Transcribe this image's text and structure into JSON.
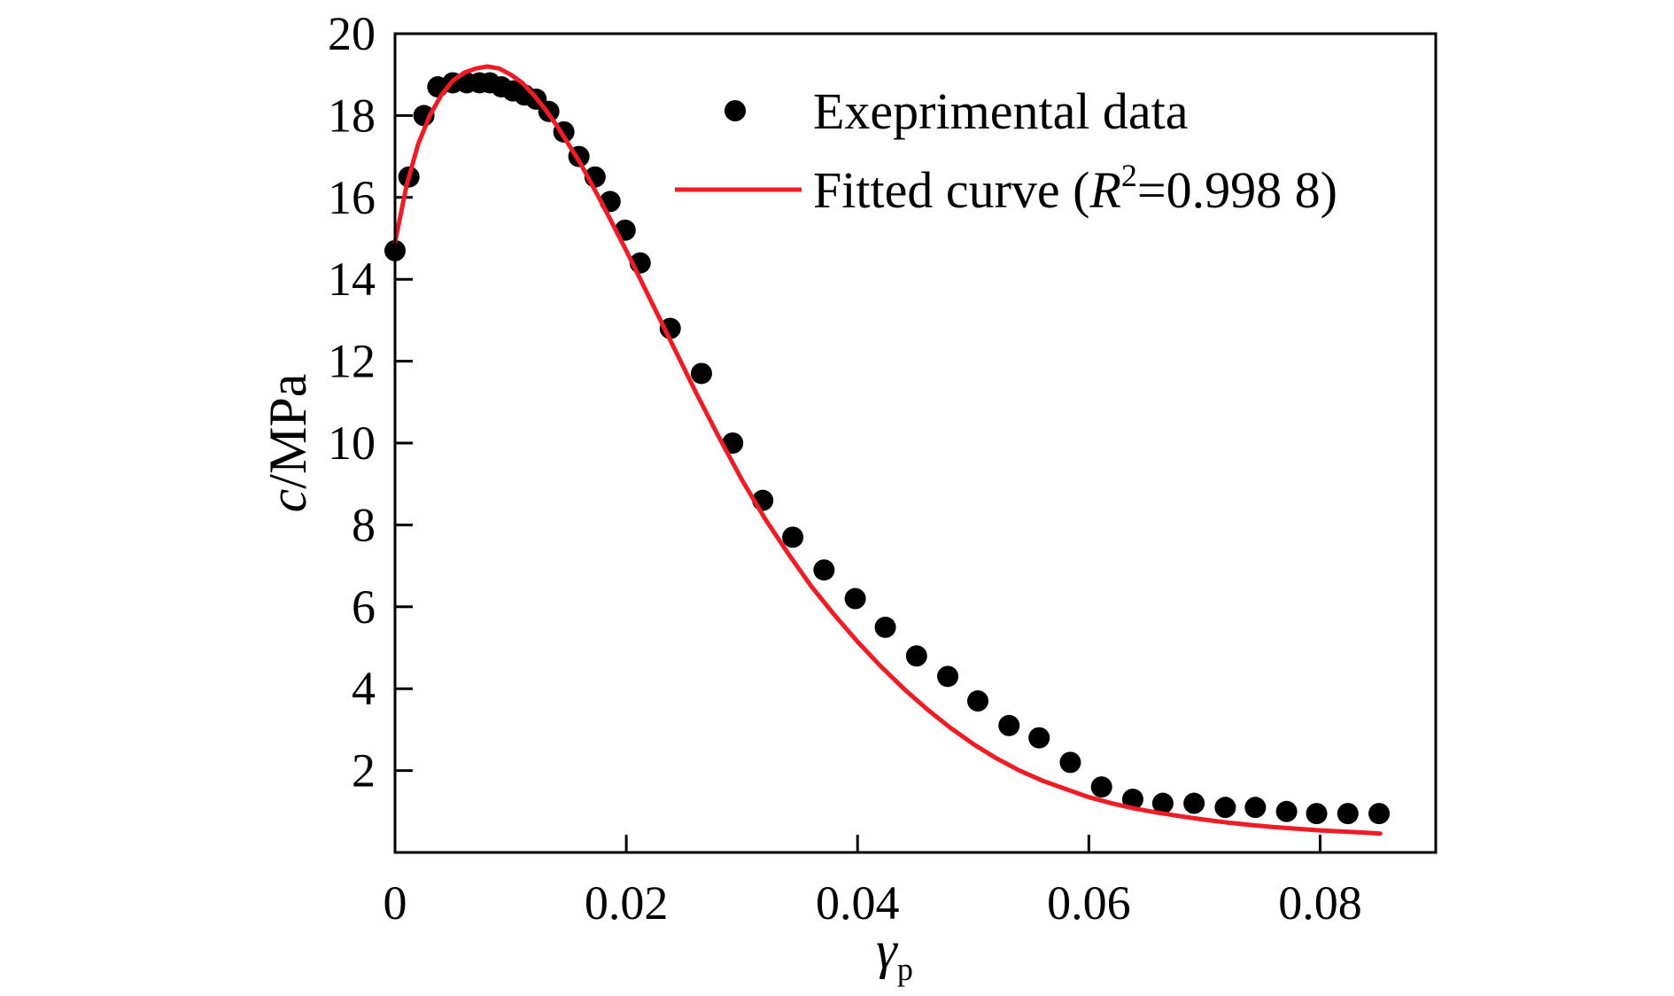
{
  "chart_data": {
    "type": "scatter",
    "title": "",
    "xlabel": {
      "main": "γ",
      "sub": "p"
    },
    "ylabel": {
      "italic": "c",
      "rest": "/MPa"
    },
    "xlim": [
      0,
      0.09
    ],
    "ylim": [
      0,
      20
    ],
    "x_ticks": [
      0,
      0.02,
      0.04,
      0.06,
      0.08
    ],
    "x_tick_labels": [
      "0",
      "0.02",
      "0.04",
      "0.06",
      "0.08"
    ],
    "y_ticks": [
      2,
      4,
      6,
      8,
      10,
      12,
      14,
      16,
      18,
      20
    ],
    "y_tick_labels": [
      "2",
      "4",
      "6",
      "8",
      "10",
      "12",
      "14",
      "16",
      "18",
      "20"
    ],
    "grid": false,
    "legend_position": "top-right",
    "series": [
      {
        "name": "Exeprimental data",
        "kind": "scatter",
        "color": "#000000",
        "x": [
          0.0,
          0.0012,
          0.0025,
          0.0037,
          0.005,
          0.0062,
          0.0073,
          0.0082,
          0.0092,
          0.0102,
          0.0112,
          0.0122,
          0.0133,
          0.0146,
          0.0159,
          0.0173,
          0.0186,
          0.0199,
          0.0212,
          0.0238,
          0.0265,
          0.0292,
          0.0318,
          0.0344,
          0.0371,
          0.0398,
          0.0424,
          0.0451,
          0.0478,
          0.0504,
          0.0531,
          0.0557,
          0.0584,
          0.0611,
          0.0638,
          0.0664,
          0.0691,
          0.0718,
          0.0744,
          0.0771,
          0.0797,
          0.0824,
          0.0851
        ],
        "y": [
          14.7,
          16.5,
          18.0,
          18.7,
          18.8,
          18.8,
          18.8,
          18.8,
          18.7,
          18.6,
          18.5,
          18.4,
          18.1,
          17.6,
          17.0,
          16.5,
          15.9,
          15.2,
          14.4,
          12.8,
          11.7,
          10.0,
          8.6,
          7.7,
          6.9,
          6.2,
          5.5,
          4.8,
          4.3,
          3.7,
          3.1,
          2.8,
          2.2,
          1.6,
          1.3,
          1.2,
          1.2,
          1.1,
          1.1,
          1.0,
          0.95,
          0.95,
          0.95
        ]
      },
      {
        "name": "Fitted curve",
        "kind": "line",
        "color": "#ee1c25",
        "x": [
          0.0,
          0.001,
          0.002,
          0.003,
          0.004,
          0.005,
          0.006,
          0.007,
          0.008,
          0.009,
          0.01,
          0.011,
          0.012,
          0.013,
          0.014,
          0.015,
          0.016,
          0.018,
          0.02,
          0.022,
          0.024,
          0.026,
          0.028,
          0.03,
          0.032,
          0.034,
          0.036,
          0.038,
          0.04,
          0.042,
          0.044,
          0.046,
          0.048,
          0.05,
          0.052,
          0.054,
          0.056,
          0.058,
          0.06,
          0.062,
          0.064,
          0.066,
          0.068,
          0.07,
          0.072,
          0.074,
          0.076,
          0.078,
          0.08,
          0.082,
          0.084,
          0.0852
        ],
        "y": [
          14.9,
          16.3,
          17.3,
          18.0,
          18.5,
          18.85,
          19.05,
          19.15,
          19.2,
          19.15,
          19.0,
          18.8,
          18.5,
          18.15,
          17.75,
          17.3,
          16.85,
          15.8,
          14.7,
          13.55,
          12.4,
          11.25,
          10.15,
          9.1,
          8.15,
          7.3,
          6.5,
          5.8,
          5.15,
          4.55,
          4.0,
          3.5,
          3.05,
          2.65,
          2.3,
          2.0,
          1.75,
          1.55,
          1.35,
          1.2,
          1.07,
          0.97,
          0.88,
          0.8,
          0.73,
          0.67,
          0.62,
          0.58,
          0.54,
          0.51,
          0.48,
          0.46
        ]
      }
    ],
    "legend": {
      "scatter_label": "Exeprimental data",
      "line_label_prefix": "Fitted curve (",
      "line_label_italic": "R",
      "line_label_sup": "2",
      "line_label_suffix": "=0.998 8)"
    }
  }
}
